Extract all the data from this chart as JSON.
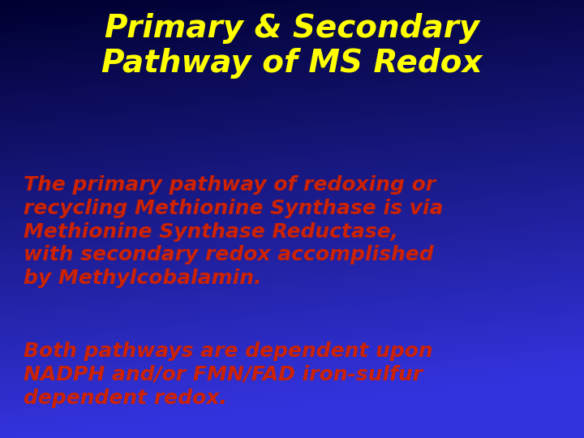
{
  "title_line1": "Primary & Secondary",
  "title_line2": "Pathway of MS Redox",
  "title_color": "#FFFF00",
  "title_fontsize": 28,
  "body_text1": "The primary pathway of redoxing or\nrecycling Methionine Synthase is via\nMethionine Synthase Reductase,\nwith secondary redox accomplished\nby Methylcobalamin.",
  "body_text2": "Both pathways are dependent upon\nNADPH and/or FMN/FAD iron-sulfur\ndependent redox.",
  "body_color": "#CC2200",
  "body_fontsize": 18,
  "fig_width": 7.2,
  "fig_height": 5.4,
  "dpi": 100,
  "gradient_colors": [
    "#000030",
    "#000055",
    "#0000aa",
    "#1a1acc",
    "#2222cc",
    "#3333dd"
  ],
  "gradient_stops": [
    0.0,
    0.15,
    0.45,
    0.65,
    0.8,
    1.0
  ]
}
